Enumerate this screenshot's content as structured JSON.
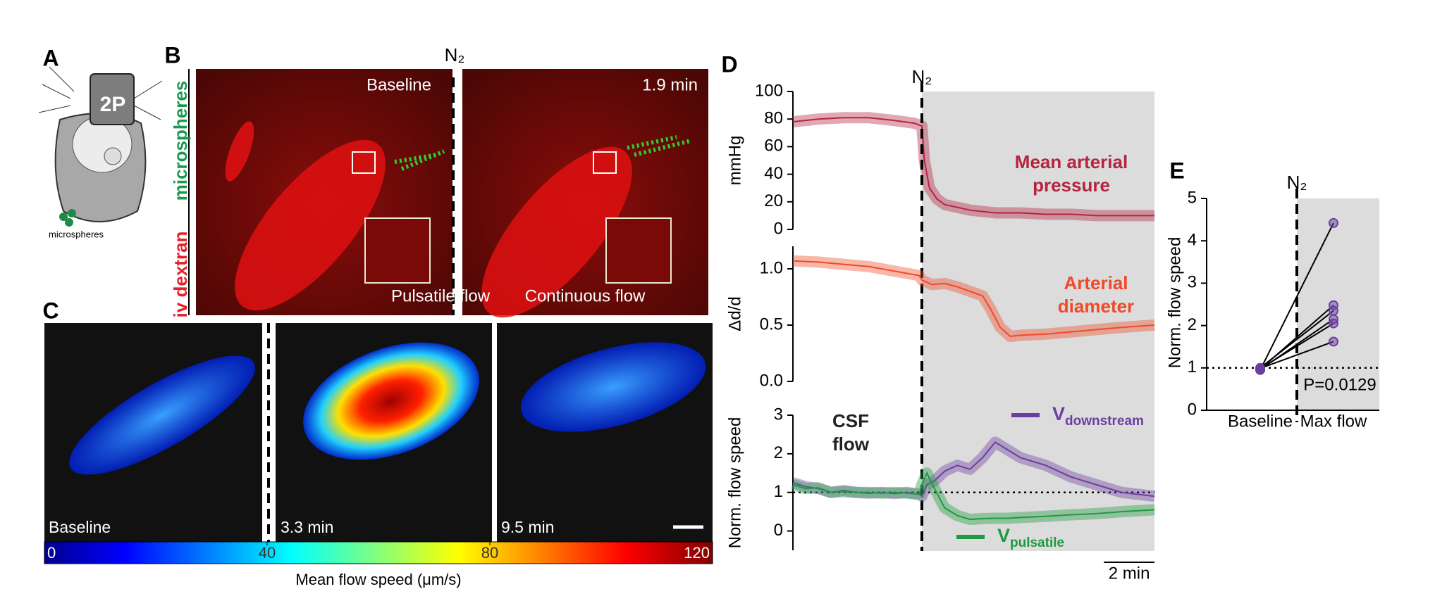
{
  "figure": {
    "panel_labels": [
      "A",
      "B",
      "C",
      "D",
      "E"
    ],
    "A": {
      "objective": "2P",
      "legend": "microspheres"
    },
    "B": {
      "side_labels": [
        "iv dextran",
        "microspheres"
      ],
      "gas": "N₂",
      "frames": [
        {
          "time": "Baseline",
          "caption": "Pulsatile flow"
        },
        {
          "time": "1.9 min",
          "caption": "Continuous flow"
        }
      ]
    },
    "C": {
      "frames": [
        "Baseline",
        "3.3 min",
        "9.5 min"
      ],
      "colorbar": {
        "label": "Mean flow speed (μm/s)",
        "lim": [
          0,
          120
        ],
        "ticks": [
          0,
          40,
          80,
          120
        ]
      }
    }
  },
  "chart_data": [
    {
      "type": "line",
      "ylabel": "mmHg",
      "annotation": [
        "Mean arterial",
        "pressure"
      ],
      "event": {
        "x": 5.1,
        "label": "N₂"
      },
      "xlim": [
        0,
        14.3
      ],
      "ylim": [
        0,
        100
      ],
      "yticks": [
        0,
        20,
        40,
        60,
        80,
        100
      ],
      "x": [
        0,
        1,
        2,
        3,
        4,
        4.8,
        5.1,
        5.2,
        5.4,
        5.7,
        6,
        7,
        8,
        9,
        10,
        11,
        12,
        13,
        14.3
      ],
      "series": [
        {
          "color": "#b5243f",
          "values": [
            78,
            80,
            81,
            81,
            79,
            77,
            75,
            50,
            30,
            22,
            18,
            14,
            12,
            12,
            11,
            11,
            10,
            10,
            10
          ]
        }
      ]
    },
    {
      "type": "line",
      "ylabel": "Δd/d",
      "annotation": [
        "Arterial",
        "diameter"
      ],
      "xlim": [
        0,
        14.3
      ],
      "ylim": [
        0,
        1.2
      ],
      "yticks": [
        {
          "value": 0,
          "label": "0.0"
        },
        {
          "value": 0.5,
          "label": "0.5"
        },
        {
          "value": 1,
          "label": "1.0"
        }
      ],
      "x": [
        0,
        1,
        2,
        3,
        4,
        5,
        5.1,
        5.5,
        6,
        6.5,
        7,
        7.5,
        7.8,
        8.2,
        8.6,
        9,
        10,
        11,
        12,
        13,
        14.3
      ],
      "series": [
        {
          "color": "#ef4a2a",
          "values": [
            1.07,
            1.06,
            1.04,
            1.02,
            0.98,
            0.94,
            0.9,
            0.86,
            0.87,
            0.84,
            0.8,
            0.76,
            0.65,
            0.48,
            0.4,
            0.41,
            0.42,
            0.44,
            0.46,
            0.48,
            0.5
          ]
        }
      ]
    },
    {
      "type": "line",
      "ylabel": "Norm. flow speed",
      "annotation": [
        "CSF",
        "flow"
      ],
      "reference": 1,
      "scalebar": {
        "value": 2,
        "label": "2 min"
      },
      "xlim": [
        0,
        14.3
      ],
      "ylim": [
        -0.5,
        3
      ],
      "yticks": [
        0,
        1,
        2,
        3
      ],
      "x": [
        0,
        0.5,
        1,
        1.5,
        2,
        2.5,
        3,
        3.5,
        4,
        4.5,
        5,
        5.1,
        5.3,
        5.6,
        6,
        6.5,
        7,
        7.5,
        8,
        8.5,
        9,
        10,
        11,
        12,
        13,
        14.3
      ],
      "series": [
        {
          "name": "V",
          "subscript": "downstream",
          "color": "#6b3fa0",
          "values": [
            1.25,
            1.15,
            1.1,
            1.0,
            1.05,
            1.0,
            0.98,
            1.0,
            0.97,
            1.0,
            0.95,
            0.9,
            1.2,
            1.3,
            1.55,
            1.7,
            1.6,
            1.9,
            2.3,
            2.1,
            1.9,
            1.7,
            1.4,
            1.2,
            1.0,
            0.9
          ]
        },
        {
          "name": "V",
          "subscript": "pulsatile",
          "color": "#1f9a3e",
          "values": [
            1.2,
            1.1,
            1.12,
            1.0,
            1.02,
            1.0,
            1.0,
            0.98,
            1.0,
            0.98,
            0.95,
            1.2,
            1.5,
            1.1,
            0.6,
            0.4,
            0.3,
            0.32,
            0.33,
            0.33,
            0.35,
            0.38,
            0.42,
            0.45,
            0.5,
            0.55
          ]
        }
      ]
    },
    {
      "type": "paired",
      "ylabel": "Norm. flow speed",
      "categories": [
        "Baseline",
        "Max flow"
      ],
      "event_label": "N₂",
      "annotation": "P=0.0129",
      "reference": 1,
      "color": "#6b3fa0",
      "ylim": [
        0,
        5
      ],
      "yticks": [
        0,
        1,
        2,
        3,
        4,
        5
      ],
      "pairs": [
        [
          0.95,
          4.42
        ],
        [
          0.97,
          2.48
        ],
        [
          1.0,
          2.35
        ],
        [
          0.96,
          2.15
        ],
        [
          0.98,
          2.05
        ],
        [
          0.99,
          1.62
        ]
      ]
    }
  ]
}
